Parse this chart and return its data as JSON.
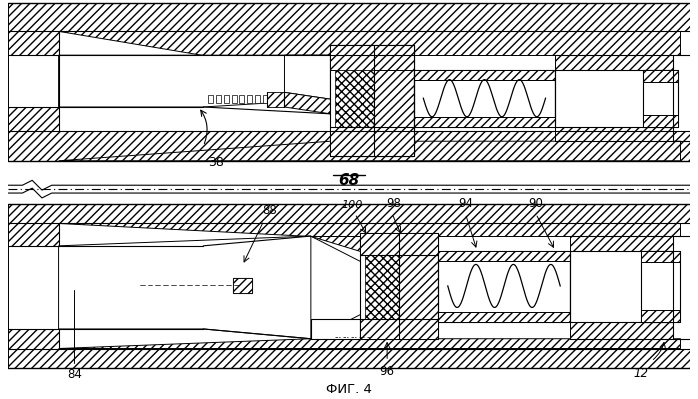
{
  "title": "ФИГ. 4",
  "background_color": "#ffffff",
  "line_color": "#000000",
  "fig_width": 6.98,
  "fig_height": 3.99,
  "dpi": 100,
  "label_68": "68",
  "label_38": "38",
  "label_88": "88",
  "label_84": "84",
  "label_96": "96",
  "label_100": "100",
  "label_98": "98",
  "label_94": "94",
  "label_90": "90",
  "label_12": "12"
}
